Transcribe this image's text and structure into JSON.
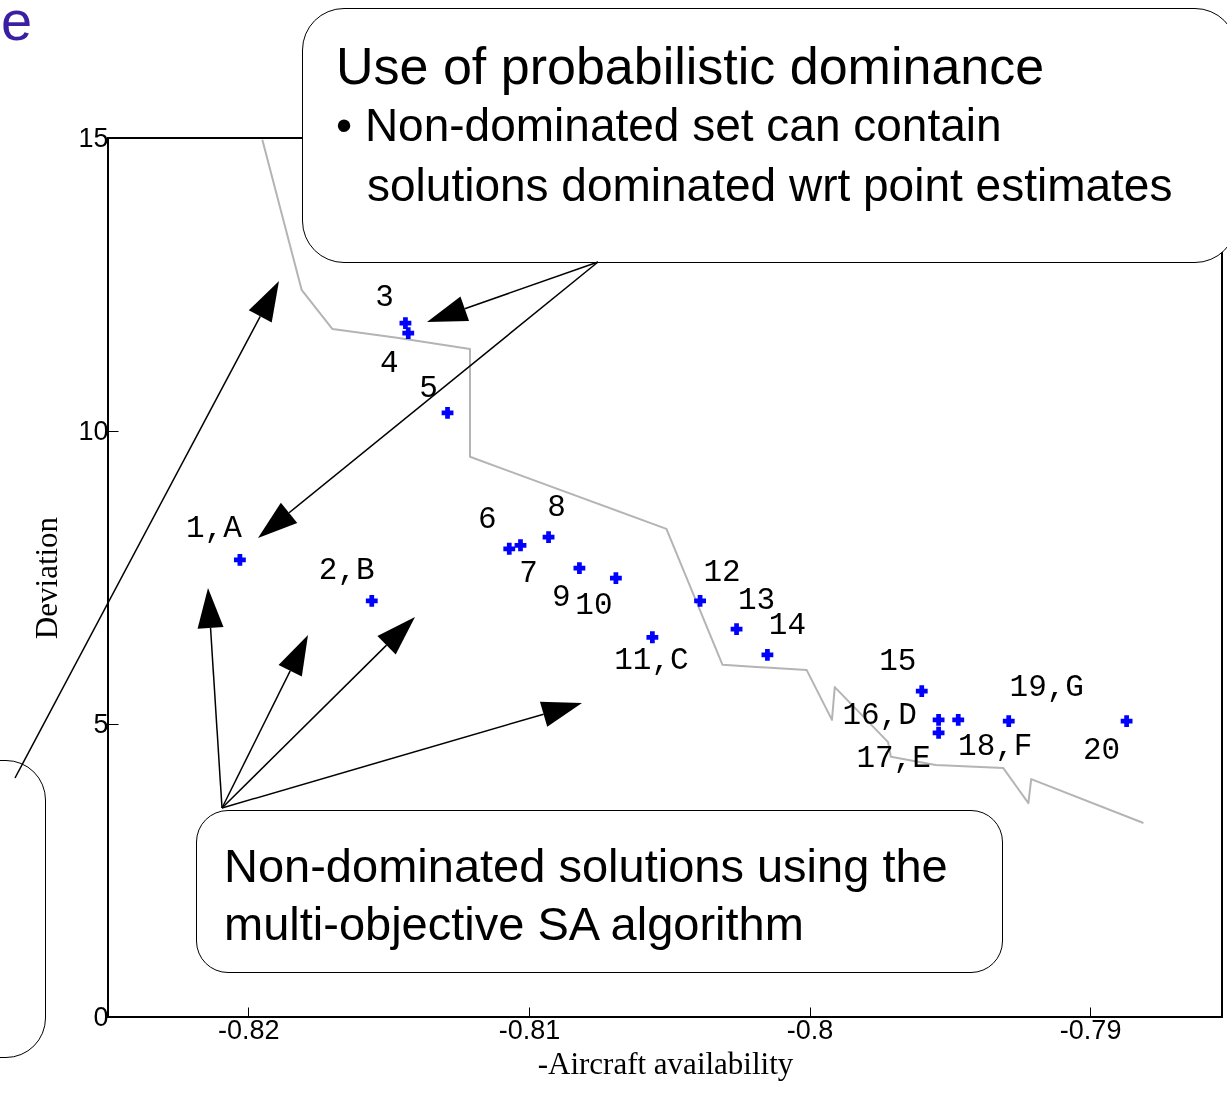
{
  "chart_data": {
    "type": "scatter",
    "title": "e",
    "xlabel": "-Aircraft availability",
    "ylabel": "Deviation",
    "xlim": [
      -0.825,
      -0.7853
    ],
    "ylim": [
      0,
      15
    ],
    "xticks": [
      -0.82,
      -0.81,
      -0.8,
      -0.79
    ],
    "yticks": [
      0,
      5,
      10,
      15
    ],
    "grid": false,
    "marker": "cross",
    "series": [
      {
        "type": "line",
        "color": "#b4b4b4",
        "marker": "none",
        "x": [
          -0.8195,
          -0.8181,
          -0.817,
          -0.8147,
          -0.8121,
          -0.8121,
          -0.8051,
          -0.8031,
          -0.8001,
          -0.7992,
          -0.7991,
          -0.7972,
          -0.7971,
          -0.7955,
          -0.7931,
          -0.7922,
          -0.7921,
          -0.7881
        ],
        "values": [
          14.97,
          12.41,
          11.74,
          11.59,
          11.4,
          9.56,
          8.33,
          6.01,
          5.92,
          5.07,
          5.63,
          4.69,
          4.44,
          4.3,
          4.25,
          3.65,
          4.06,
          3.31
        ]
      },
      {
        "type": "scatter",
        "color": "#0000ff",
        "x": [
          -0.8203,
          -0.8156,
          -0.8144,
          -0.8143,
          -0.8129,
          -0.8107,
          -0.8103,
          -0.8093,
          -0.8082,
          -0.8069,
          -0.8056,
          -0.8039,
          -0.8026,
          -0.8015,
          -0.796,
          -0.7954,
          -0.7954,
          -0.7947,
          -0.7929,
          -0.7887
        ],
        "values": [
          7.8,
          7.1,
          11.84,
          11.67,
          10.31,
          7.99,
          8.05,
          8.19,
          7.66,
          7.49,
          6.48,
          7.1,
          6.62,
          6.18,
          5.56,
          5.07,
          4.85,
          5.07,
          5.05,
          5.05
        ]
      }
    ],
    "annotations": [
      "Use of probabilistic dominance",
      "• Non-dominated set can contain solutions dominated wrt point estimates",
      "Non-dominated solutions using the multi-objective SA algorithm",
      {
        "text": "1,A",
        "x": -0.8203,
        "y": 7.8
      },
      {
        "text": "2,B",
        "x": -0.8156,
        "y": 7.1
      },
      {
        "text": "3",
        "x": -0.8144,
        "y": 11.84
      },
      {
        "text": "4",
        "x": -0.8143,
        "y": 11.67
      },
      {
        "text": "5",
        "x": -0.8129,
        "y": 10.31
      },
      {
        "text": "6",
        "x": -0.8107,
        "y": 7.99
      },
      {
        "text": "7",
        "x": -0.8103,
        "y": 8.05
      },
      {
        "text": "8",
        "x": -0.8093,
        "y": 8.19
      },
      {
        "text": "9",
        "x": -0.8082,
        "y": 7.66
      },
      {
        "text": "10",
        "x": -0.8069,
        "y": 7.49
      },
      {
        "text": "11,C",
        "x": -0.8056,
        "y": 6.48
      },
      {
        "text": "12",
        "x": -0.8039,
        "y": 7.1
      },
      {
        "text": "13",
        "x": -0.8026,
        "y": 6.62
      },
      {
        "text": "14",
        "x": -0.8015,
        "y": 6.18
      },
      {
        "text": "15",
        "x": -0.796,
        "y": 5.56
      },
      {
        "text": "16,D",
        "x": -0.7954,
        "y": 5.07
      },
      {
        "text": "17,E",
        "x": -0.7954,
        "y": 4.85
      },
      {
        "text": "18,F",
        "x": -0.7947,
        "y": 5.07
      },
      {
        "text": "19,G",
        "x": -0.7929,
        "y": 5.05
      },
      {
        "text": "20",
        "x": -0.7887,
        "y": 5.05
      }
    ]
  }
}
